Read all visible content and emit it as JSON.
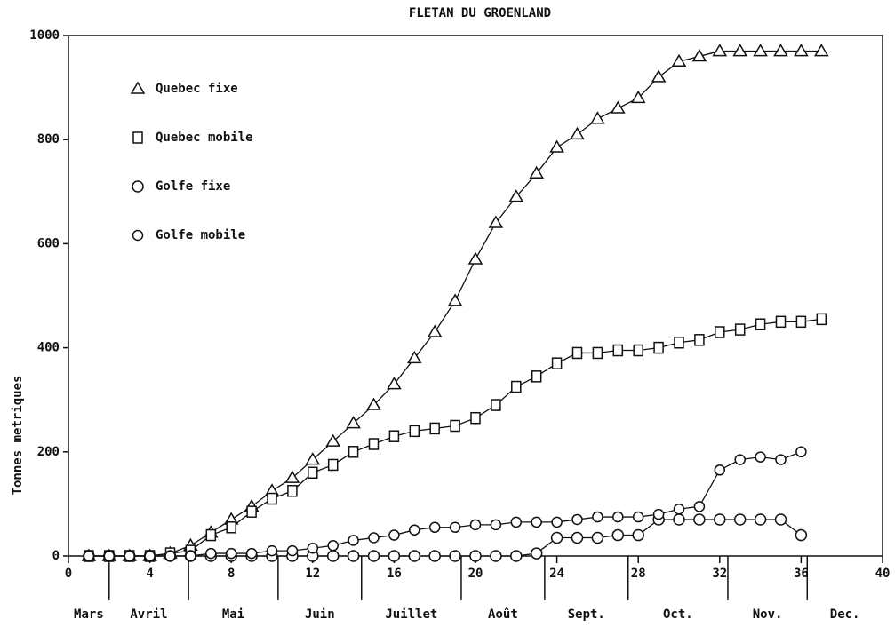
{
  "chart_data": {
    "type": "line",
    "title": "FLETAN DU GROENLAND",
    "y_label": "Tonnes metriques",
    "x": [
      1,
      2,
      3,
      4,
      5,
      6,
      7,
      8,
      9,
      10,
      11,
      12,
      13,
      14,
      15,
      16,
      17,
      18,
      19,
      20,
      21,
      22,
      23,
      24,
      25,
      26,
      27,
      28,
      29,
      30,
      31,
      32,
      33,
      34,
      35,
      36,
      37
    ],
    "series": [
      {
        "name": "Quebec fixe",
        "marker": "triangle",
        "color": "#111",
        "values": [
          0,
          0,
          0,
          0,
          5,
          20,
          45,
          70,
          95,
          125,
          150,
          185,
          220,
          255,
          290,
          330,
          380,
          430,
          490,
          570,
          640,
          690,
          735,
          785,
          810,
          840,
          860,
          880,
          920,
          950,
          960,
          970,
          970,
          970,
          970,
          970,
          970
        ]
      },
      {
        "name": "Quebec mobile",
        "marker": "square",
        "color": "#111",
        "values": [
          0,
          0,
          0,
          0,
          5,
          10,
          40,
          55,
          85,
          110,
          125,
          160,
          175,
          200,
          215,
          230,
          240,
          245,
          250,
          265,
          290,
          325,
          345,
          370,
          390,
          390,
          395,
          395,
          400,
          410,
          415,
          430,
          435,
          445,
          450,
          450,
          455
        ]
      },
      {
        "name": "Golfe fixe",
        "marker": "circle",
        "color": "#111",
        "values": [
          0,
          0,
          0,
          0,
          0,
          0,
          0,
          0,
          0,
          0,
          0,
          0,
          0,
          0,
          0,
          0,
          0,
          0,
          0,
          0,
          0,
          0,
          5,
          35,
          35,
          35,
          40,
          40,
          70,
          70,
          70,
          70,
          70,
          70,
          70,
          40,
          null
        ]
      },
      {
        "name": "Golfe mobile",
        "marker": "bold-circle",
        "color": "#111",
        "values": [
          0,
          0,
          0,
          0,
          0,
          0,
          5,
          5,
          5,
          10,
          10,
          15,
          20,
          30,
          35,
          40,
          50,
          55,
          55,
          60,
          60,
          65,
          65,
          65,
          70,
          75,
          75,
          75,
          80,
          90,
          95,
          165,
          185,
          190,
          185,
          200,
          null
        ]
      }
    ],
    "xlim": [
      0,
      40
    ],
    "xticks": [
      0,
      4,
      8,
      12,
      16,
      20,
      24,
      28,
      32,
      36,
      40
    ],
    "ylim": [
      0,
      1000
    ],
    "yticks": [
      0,
      200,
      400,
      600,
      800,
      1000
    ],
    "months": [
      "Mars",
      "Avril",
      "Mai",
      "Juin",
      "Juillet",
      "Août",
      "Sept.",
      "Oct.",
      "Nov.",
      "Dec."
    ],
    "month_bounds": [
      2,
      5.9,
      10.3,
      14.4,
      19.3,
      23.4,
      27.5,
      32.4,
      36.3
    ],
    "legend": "upper left"
  }
}
